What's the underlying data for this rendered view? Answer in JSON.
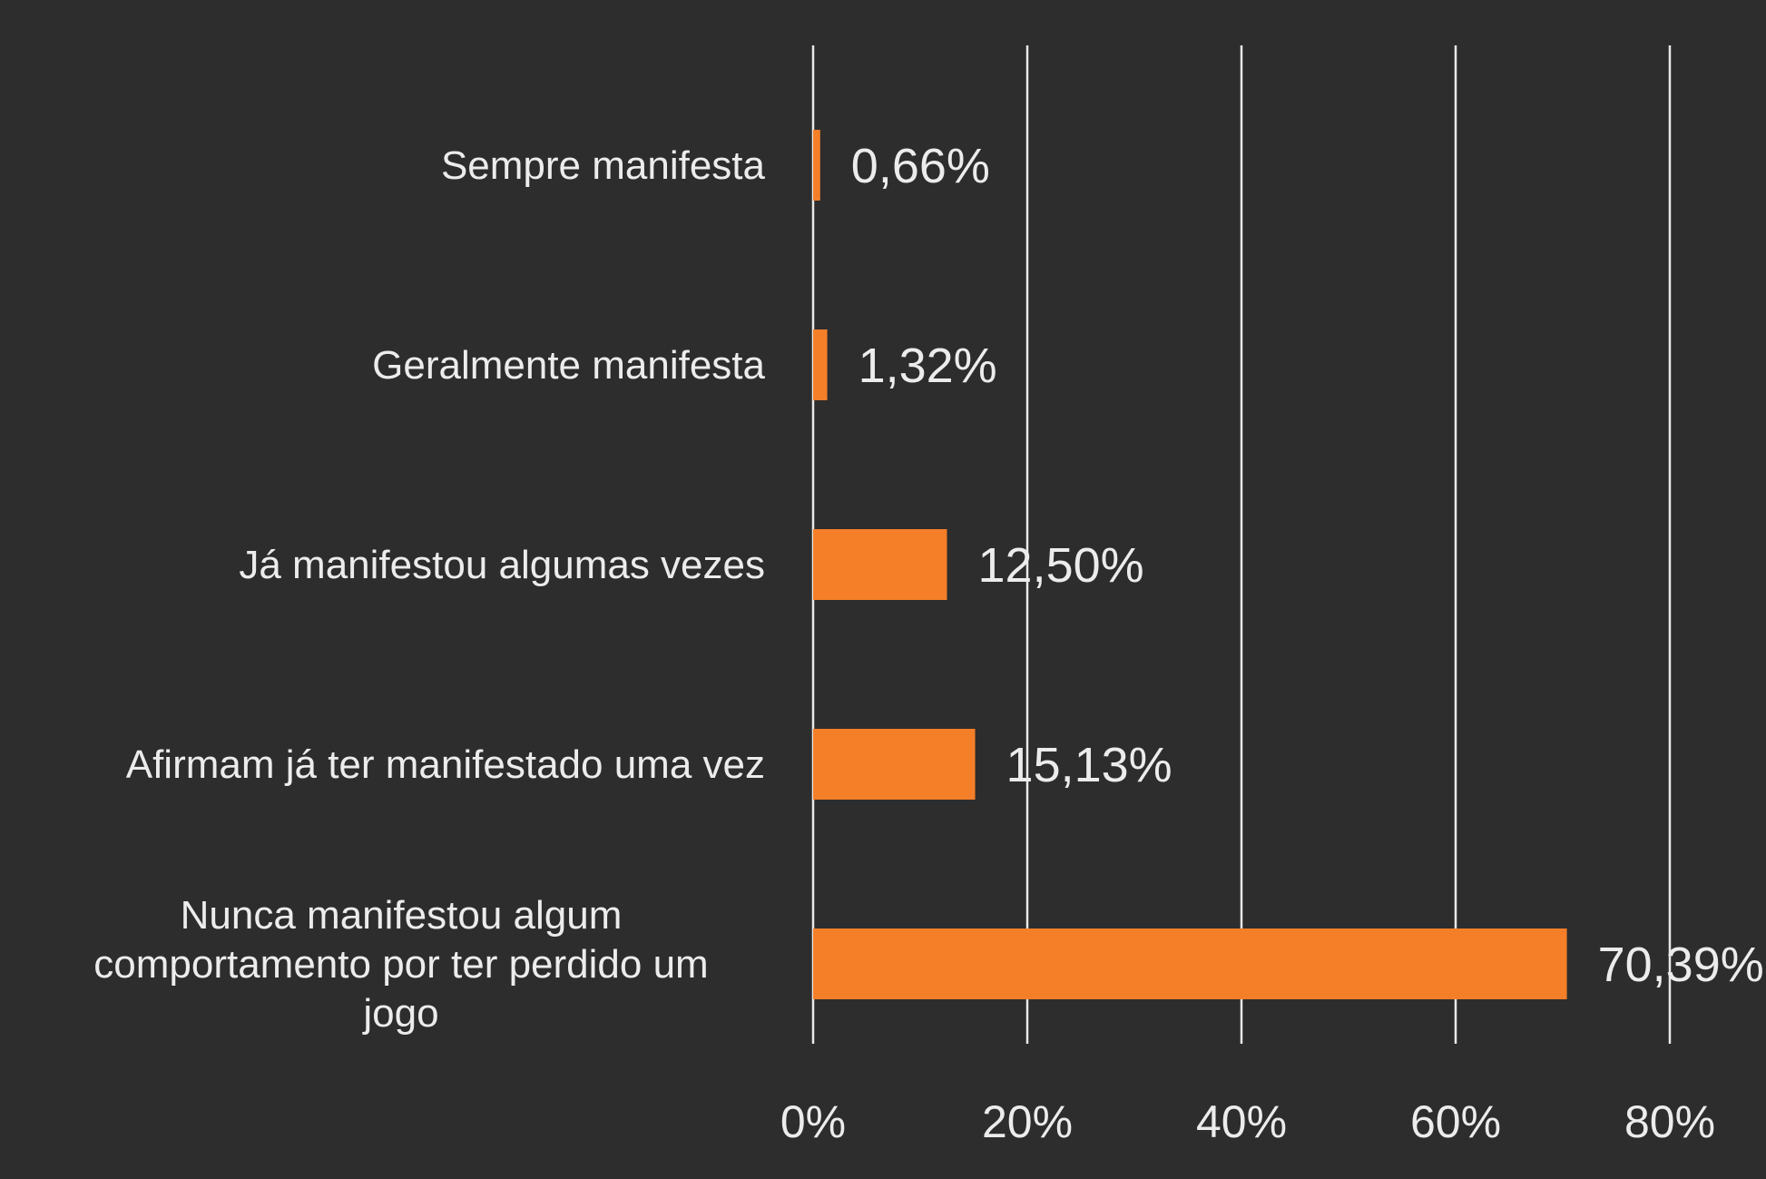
{
  "chart_data": {
    "type": "bar",
    "orientation": "horizontal",
    "title": "",
    "xlabel": "",
    "ylabel": "",
    "categories": [
      [
        "Sempre manifesta"
      ],
      [
        "Geralmente manifesta"
      ],
      [
        "Já manifestou algumas vezes"
      ],
      [
        "Afirmam já ter manifestado uma vez"
      ],
      [
        "Nunca manifestou algum",
        "comportamento por ter perdido um",
        "jogo"
      ]
    ],
    "values": [
      0.66,
      1.32,
      12.5,
      15.13,
      70.39
    ],
    "value_labels": [
      "0,66%",
      "1,32%",
      "12,50%",
      "15,13%",
      "70,39%"
    ],
    "xlim": [
      0,
      80
    ],
    "x_ticks": [
      0,
      20,
      40,
      60,
      80
    ],
    "x_tick_labels": [
      "0%",
      "20%",
      "40%",
      "60%",
      "80%"
    ],
    "grid": true,
    "legend": "none",
    "colors": {
      "background": "#2d2d2d",
      "bar": "#f57f29",
      "text": "#ececec",
      "grid": "#e8e8e8"
    }
  }
}
